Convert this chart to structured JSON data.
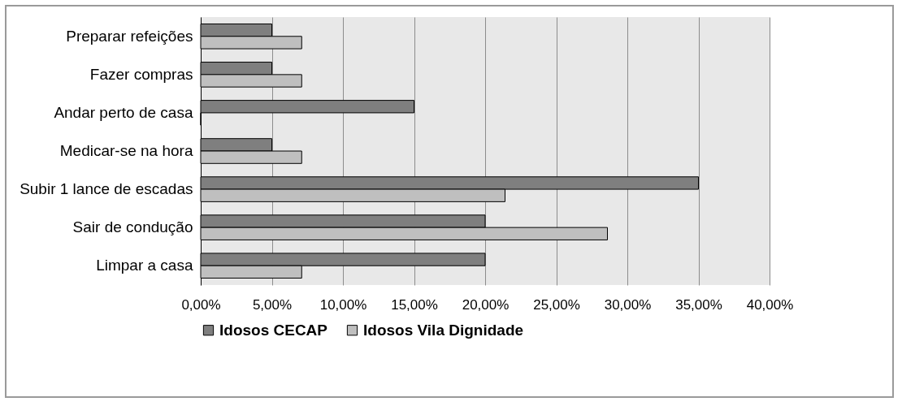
{
  "chart_data": {
    "type": "bar",
    "orientation": "horizontal",
    "categories": [
      "Preparar refeições",
      "Fazer compras",
      "Andar perto de casa",
      "Medicar-se na hora",
      "Subir 1 lance de escadas",
      "Sair de condução",
      "Limpar a casa"
    ],
    "series": [
      {
        "name": "Idosos CECAP",
        "color": "#7f7f7f",
        "values": [
          5,
          5,
          15,
          5,
          35,
          20,
          20
        ]
      },
      {
        "name": "Idosos Vila Dignidade",
        "color": "#bfbfbf",
        "values": [
          7.1,
          7.1,
          0,
          7.1,
          21.4,
          28.6,
          7.1
        ]
      }
    ],
    "xlim": [
      0,
      40
    ],
    "xticks": [
      {
        "value": 0,
        "label": "0,00%"
      },
      {
        "value": 5,
        "label": "5,00%"
      },
      {
        "value": 10,
        "label": "10,00%"
      },
      {
        "value": 15,
        "label": "15,00%"
      },
      {
        "value": 20,
        "label": "20,00%"
      },
      {
        "value": 25,
        "label": "25,00%"
      },
      {
        "value": 30,
        "label": "30,00%"
      },
      {
        "value": 35,
        "label": "35,00%"
      },
      {
        "value": 40,
        "label": "40,00%"
      }
    ],
    "grid": "x",
    "legend": "bottom"
  }
}
